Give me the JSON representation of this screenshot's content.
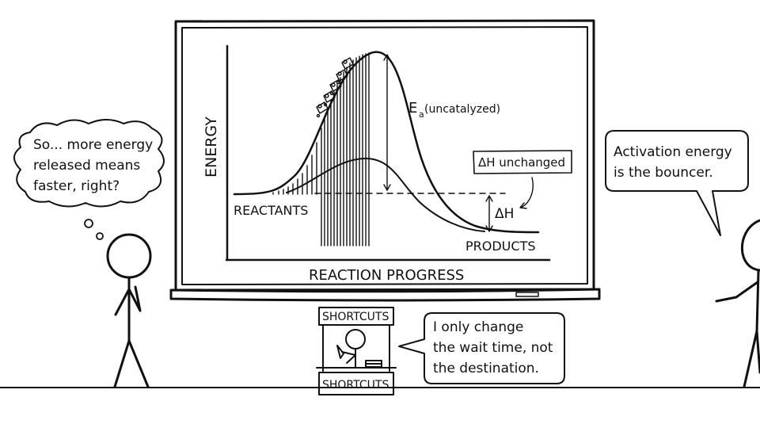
{
  "thought_bubble": {
    "lines": [
      "So... more energy",
      "released means",
      "faster, right?"
    ]
  },
  "chart": {
    "y_axis_label": "ENERGY",
    "x_axis_label": "REACTION PROGRESS",
    "reactants_label": "REACTANTS",
    "products_label": "PRODUCTS",
    "ea_label_main": "E",
    "ea_label_sub": "a",
    "ea_label_rest": " (uncatalyzed)",
    "dh_note": "ΔH unchanged",
    "dh_label": "ΔH"
  },
  "right_bubble": {
    "lines": [
      "Activation energy",
      "is the bouncer."
    ]
  },
  "booth": {
    "top_sign": "SHORTCUTS",
    "bottom_sign": "SHORTCUTS"
  },
  "booth_bubble": {
    "lines": [
      "I only change",
      "the wait time, not",
      "the destination."
    ]
  }
}
